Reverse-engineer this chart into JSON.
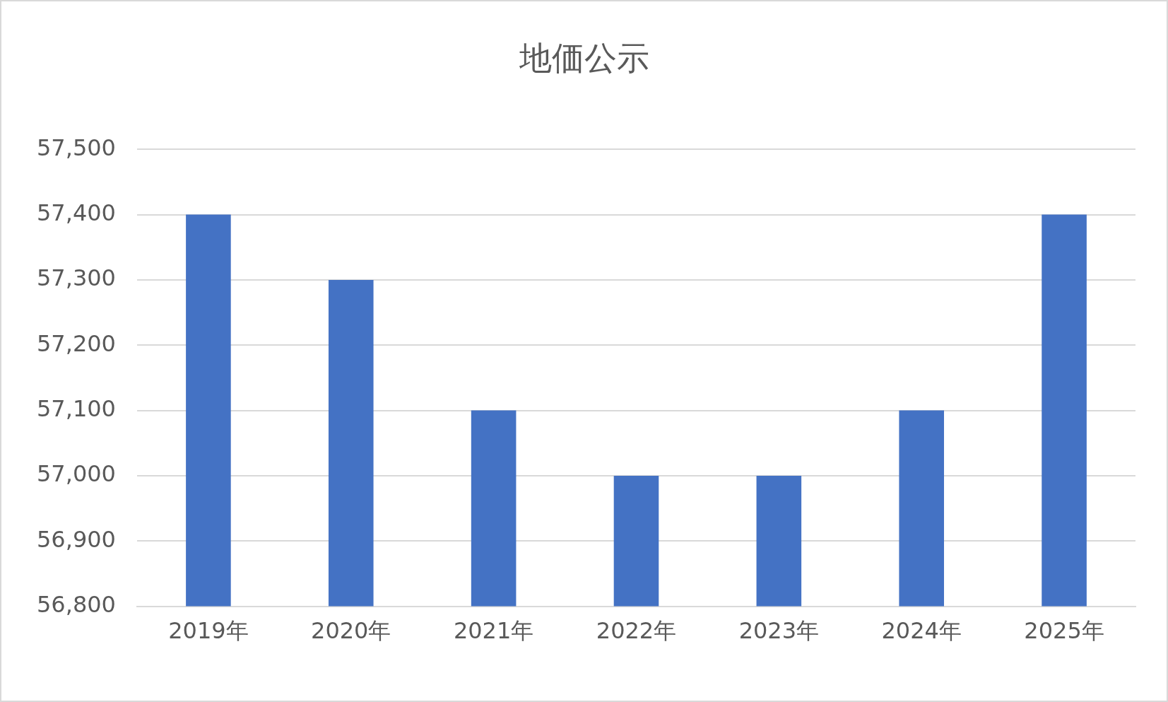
{
  "chart_data": {
    "type": "bar",
    "title": "地価公示",
    "categories": [
      "2019年",
      "2020年",
      "2021年",
      "2022年",
      "2023年",
      "2024年",
      "2025年"
    ],
    "values": [
      57400,
      57300,
      57100,
      57000,
      57000,
      57100,
      57400
    ],
    "color": "#4472c4",
    "ylim": [
      56800,
      57500
    ],
    "yticks": [
      {
        "value": 56800,
        "label": "56,800"
      },
      {
        "value": 56900,
        "label": "56,900"
      },
      {
        "value": 57000,
        "label": "57,000"
      },
      {
        "value": 57100,
        "label": "57,100"
      },
      {
        "value": 57200,
        "label": "57,200"
      },
      {
        "value": 57300,
        "label": "57,300"
      },
      {
        "value": 57400,
        "label": "57,400"
      },
      {
        "value": 57500,
        "label": "57,500"
      }
    ],
    "grid": "y",
    "legend": false
  }
}
